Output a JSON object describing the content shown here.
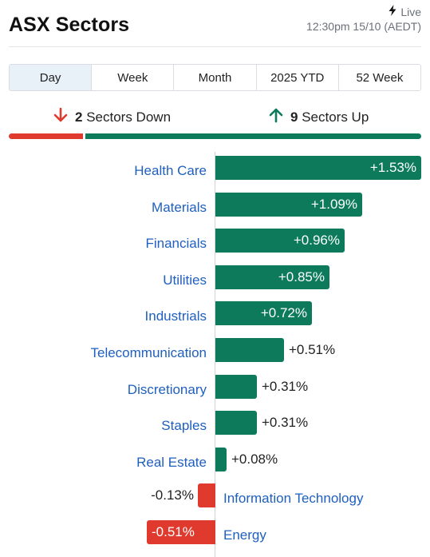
{
  "header": {
    "title": "ASX Sectors",
    "live_label": "Live",
    "timestamp": "12:30pm 15/10 (AEDT)"
  },
  "tabs": [
    {
      "label": "Day",
      "active": true
    },
    {
      "label": "Week",
      "active": false
    },
    {
      "label": "Month",
      "active": false
    },
    {
      "label": "2025 YTD",
      "active": false
    },
    {
      "label": "52 Week",
      "active": false
    }
  ],
  "summary": {
    "down_count": "2",
    "down_text": "Sectors Down",
    "up_count": "9",
    "up_text": "Sectors Up"
  },
  "colors": {
    "up": "#0c7a5b",
    "down": "#e03a2f",
    "link": "#1f5fbf"
  },
  "sectors": [
    {
      "name": "Health Care",
      "change": 1.53,
      "label": "+1.53%"
    },
    {
      "name": "Materials",
      "change": 1.09,
      "label": "+1.09%"
    },
    {
      "name": "Financials",
      "change": 0.96,
      "label": "+0.96%"
    },
    {
      "name": "Utilities",
      "change": 0.85,
      "label": "+0.85%"
    },
    {
      "name": "Industrials",
      "change": 0.72,
      "label": "+0.72%"
    },
    {
      "name": "Telecommunication",
      "change": 0.51,
      "label": "+0.51%"
    },
    {
      "name": "Discretionary",
      "change": 0.31,
      "label": "+0.31%"
    },
    {
      "name": "Staples",
      "change": 0.31,
      "label": "+0.31%"
    },
    {
      "name": "Real Estate",
      "change": 0.08,
      "label": "+0.08%"
    },
    {
      "name": "Information Technology",
      "change": -0.13,
      "label": "-0.13%"
    },
    {
      "name": "Energy",
      "change": -0.51,
      "label": "-0.51%"
    }
  ]
}
